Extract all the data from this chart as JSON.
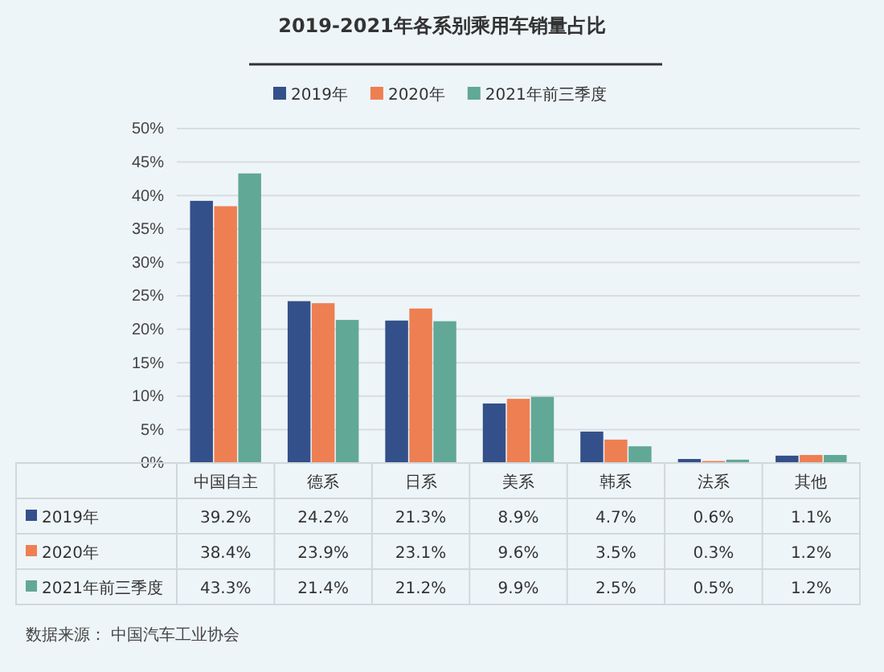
{
  "chart_data": {
    "type": "bar",
    "title": "2019-2021年各系别乘用车销量占比",
    "categories": [
      "中国自主",
      "德系",
      "日系",
      "美系",
      "韩系",
      "法系",
      "其他"
    ],
    "series": [
      {
        "name": "2019年",
        "color": "#34508a",
        "values": [
          39.2,
          24.2,
          21.3,
          8.9,
          4.7,
          0.6,
          1.1
        ],
        "value_labels": [
          "39.2%",
          "24.2%",
          "21.3%",
          "8.9%",
          "4.7%",
          "0.6%",
          "1.1%"
        ]
      },
      {
        "name": "2020年",
        "color": "#ee7f52",
        "values": [
          38.4,
          23.9,
          23.1,
          9.6,
          3.5,
          0.3,
          1.2
        ],
        "value_labels": [
          "38.4%",
          "23.9%",
          "23.1%",
          "9.6%",
          "3.5%",
          "0.3%",
          "1.2%"
        ]
      },
      {
        "name": "2021年前三季度",
        "color": "#62a896",
        "values": [
          43.3,
          21.4,
          21.2,
          9.9,
          2.5,
          0.5,
          1.2
        ],
        "value_labels": [
          "43.3%",
          "21.4%",
          "21.2%",
          "9.9%",
          "2.5%",
          "0.5%",
          "1.2%"
        ]
      }
    ],
    "ylim": [
      0,
      50
    ],
    "yticks": [
      {
        "value": 0,
        "label": "0%"
      },
      {
        "value": 5,
        "label": "5%"
      },
      {
        "value": 10,
        "label": "10%"
      },
      {
        "value": 15,
        "label": "15%"
      },
      {
        "value": 20,
        "label": "20%"
      },
      {
        "value": 25,
        "label": "25%"
      },
      {
        "value": 30,
        "label": "30%"
      },
      {
        "value": 35,
        "label": "35%"
      },
      {
        "value": 40,
        "label": "40%"
      },
      {
        "value": 45,
        "label": "45%"
      },
      {
        "value": 50,
        "label": "50%"
      }
    ],
    "grid": "y",
    "legend": "top",
    "annotations": [
      "数据来源： 中国汽车工业协会"
    ]
  }
}
